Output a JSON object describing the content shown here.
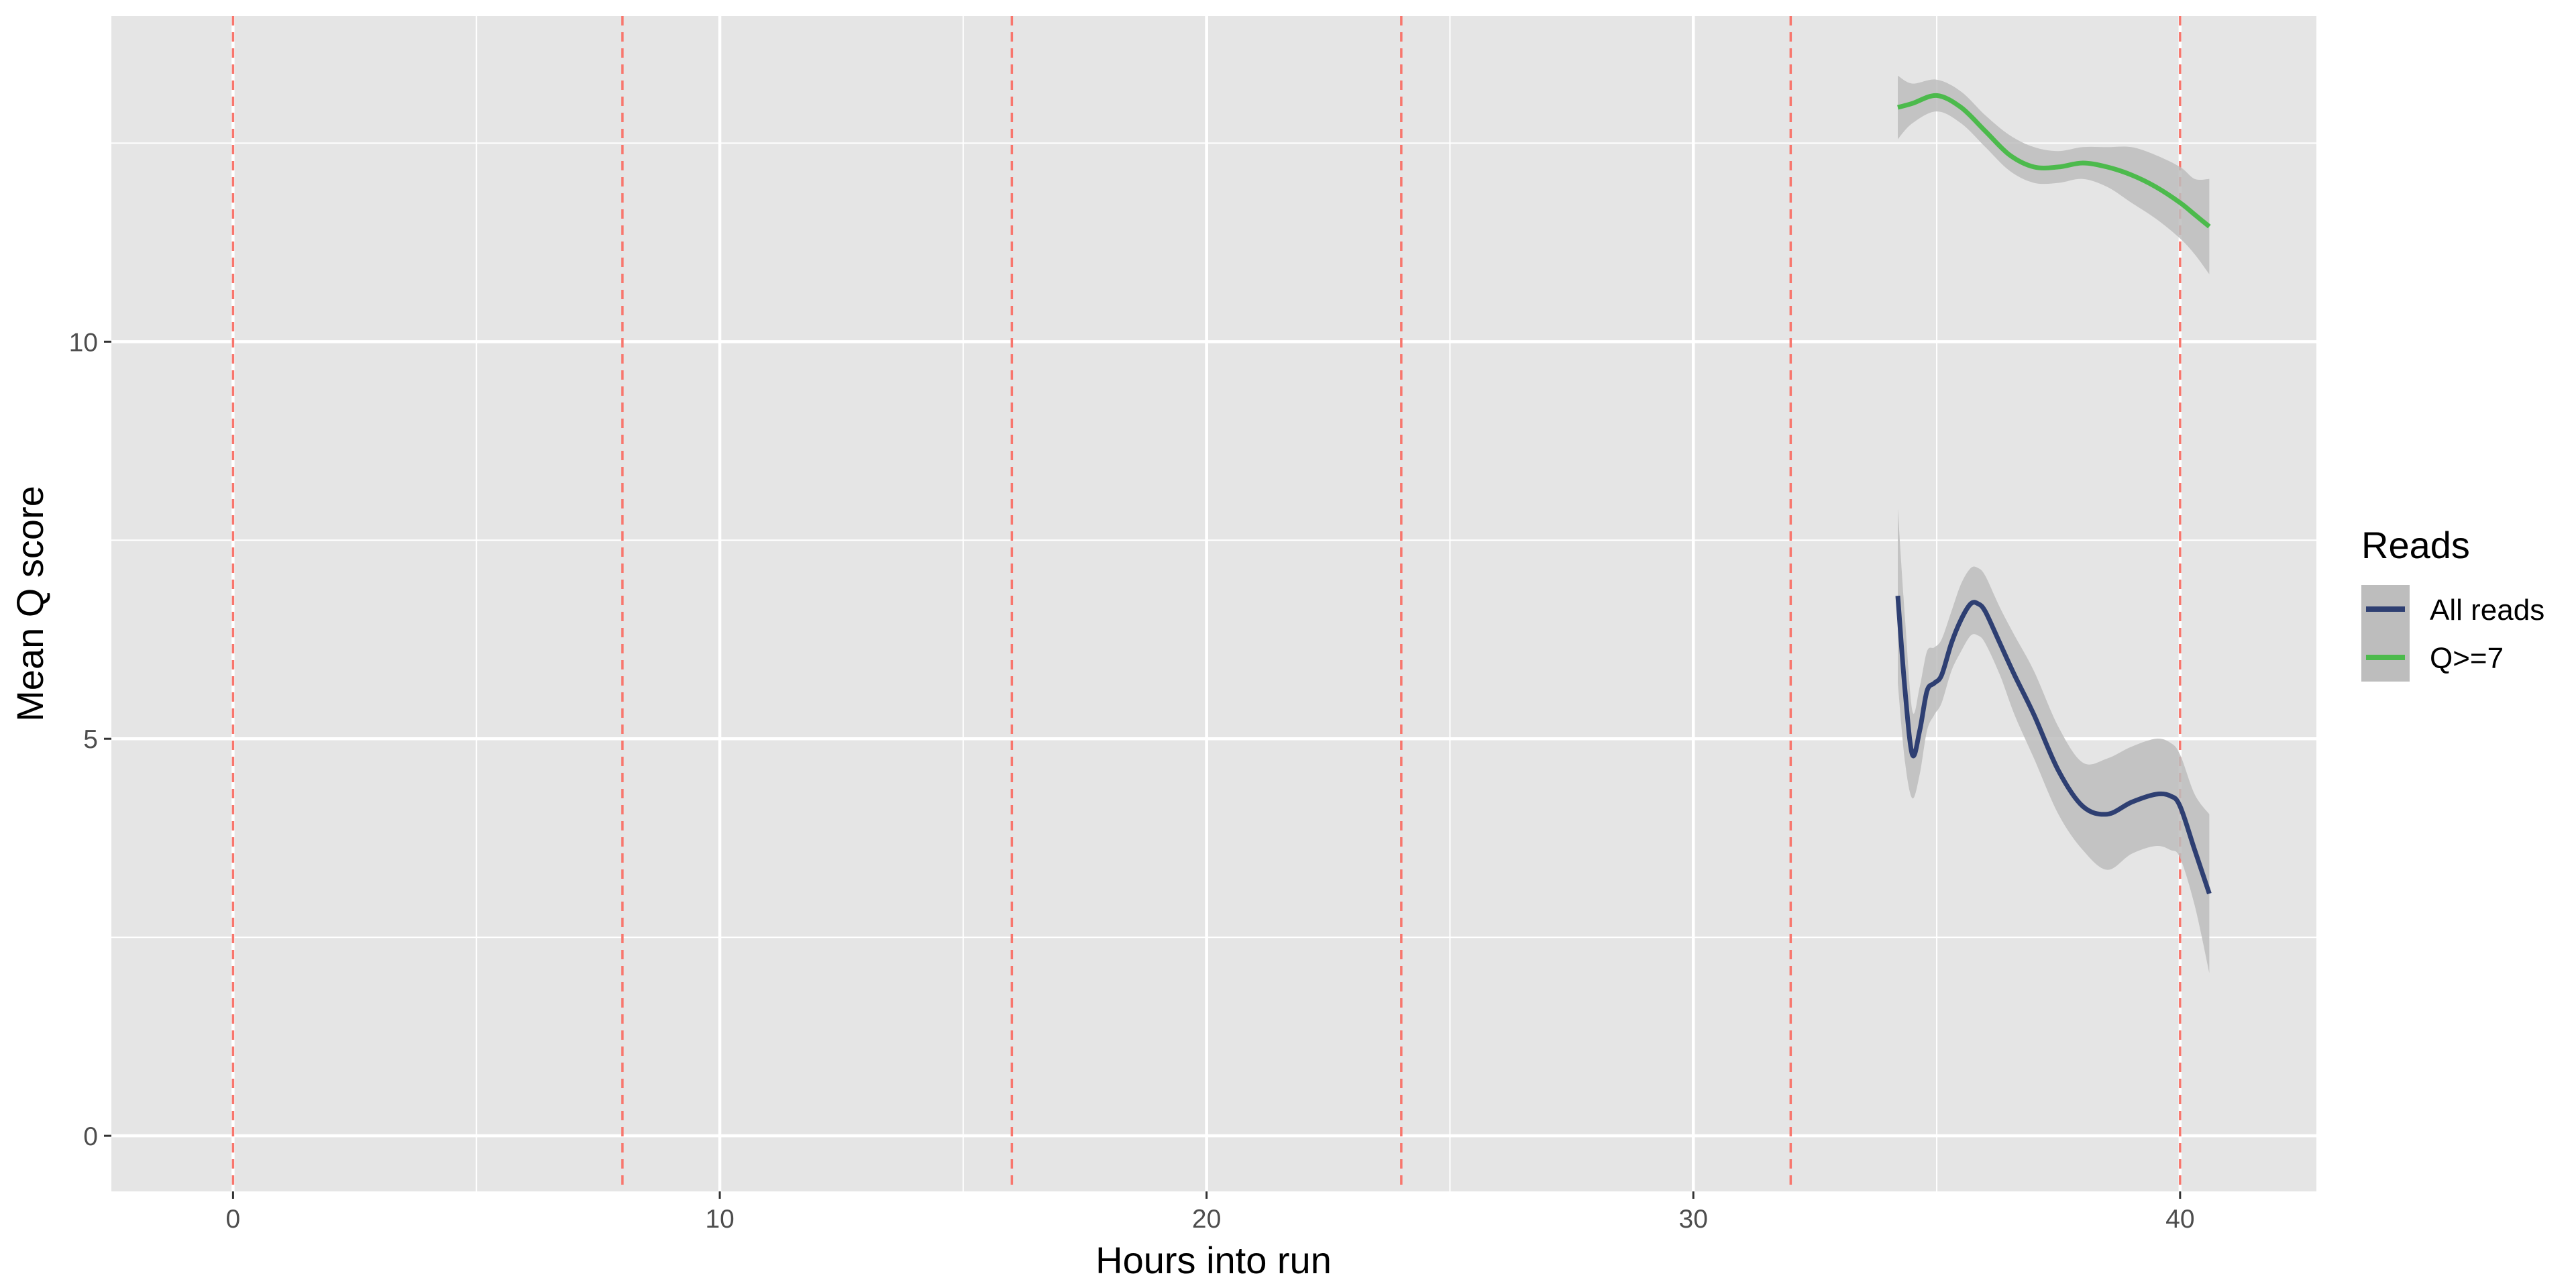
{
  "chart_data": {
    "type": "line",
    "title": "",
    "xlabel": "Hours into run",
    "ylabel": "Mean Q score",
    "xlim": [
      -2.5,
      42.8
    ],
    "ylim": [
      -0.7,
      14.1
    ],
    "x_ticks": [
      0,
      10,
      20,
      30,
      40
    ],
    "y_ticks": [
      0,
      5,
      10
    ],
    "x_tick_labels": [
      "0",
      "10",
      "20",
      "30",
      "40"
    ],
    "y_tick_labels": [
      "0",
      "5",
      "10"
    ],
    "x_minor_ticks": [
      5,
      15,
      25,
      35
    ],
    "y_minor_ticks": [
      2.5,
      7.5,
      12.5
    ],
    "grid": true,
    "vlines": {
      "style": "dashed",
      "color": "#f8766d",
      "x": [
        0,
        8,
        16,
        24,
        32,
        40
      ]
    },
    "colors": {
      "panel": "#e5e5e5",
      "grid": "#ffffff",
      "ribbon": "#bdbdbd"
    },
    "legend": {
      "title": "Reads",
      "position": "right"
    },
    "series": [
      {
        "name": "All reads",
        "color": "#2e3f72",
        "x": [
          34.2,
          34.35,
          34.5,
          34.65,
          34.8,
          34.95,
          35.1,
          35.3,
          35.5,
          35.7,
          35.85,
          36.0,
          36.3,
          36.6,
          37.0,
          37.5,
          38.0,
          38.5,
          39.0,
          39.5,
          39.8,
          40.0,
          40.3,
          40.6
        ],
        "y": [
          6.8,
          5.6,
          4.8,
          5.1,
          5.6,
          5.7,
          5.8,
          6.2,
          6.5,
          6.7,
          6.7,
          6.6,
          6.2,
          5.8,
          5.3,
          4.6,
          4.15,
          4.05,
          4.2,
          4.3,
          4.28,
          4.15,
          3.6,
          3.05
        ],
        "lower": [
          5.7,
          4.7,
          4.25,
          4.55,
          5.1,
          5.3,
          5.45,
          5.85,
          6.1,
          6.3,
          6.3,
          6.2,
          5.8,
          5.3,
          4.75,
          4.05,
          3.6,
          3.35,
          3.55,
          3.65,
          3.6,
          3.5,
          2.9,
          2.05
        ],
        "upper": [
          7.9,
          6.5,
          5.35,
          5.65,
          6.1,
          6.15,
          6.25,
          6.6,
          6.95,
          7.15,
          7.15,
          7.05,
          6.65,
          6.3,
          5.85,
          5.15,
          4.7,
          4.75,
          4.9,
          5.0,
          4.95,
          4.8,
          4.3,
          4.05
        ]
      },
      {
        "name": "Q>=7",
        "color": "#4cba4c",
        "x": [
          34.2,
          34.5,
          35.0,
          35.5,
          36.0,
          36.5,
          37.0,
          37.5,
          38.0,
          38.5,
          39.0,
          39.5,
          40.0,
          40.3,
          40.6
        ],
        "y": [
          12.95,
          13.0,
          13.1,
          12.95,
          12.65,
          12.35,
          12.2,
          12.2,
          12.25,
          12.2,
          12.1,
          11.95,
          11.75,
          11.6,
          11.45
        ],
        "lower": [
          12.55,
          12.75,
          12.9,
          12.75,
          12.45,
          12.15,
          12.0,
          12.0,
          12.05,
          11.95,
          11.75,
          11.55,
          11.3,
          11.1,
          10.85
        ],
        "upper": [
          13.35,
          13.25,
          13.3,
          13.15,
          12.85,
          12.6,
          12.45,
          12.4,
          12.45,
          12.45,
          12.45,
          12.35,
          12.2,
          12.05,
          12.05
        ]
      }
    ]
  }
}
